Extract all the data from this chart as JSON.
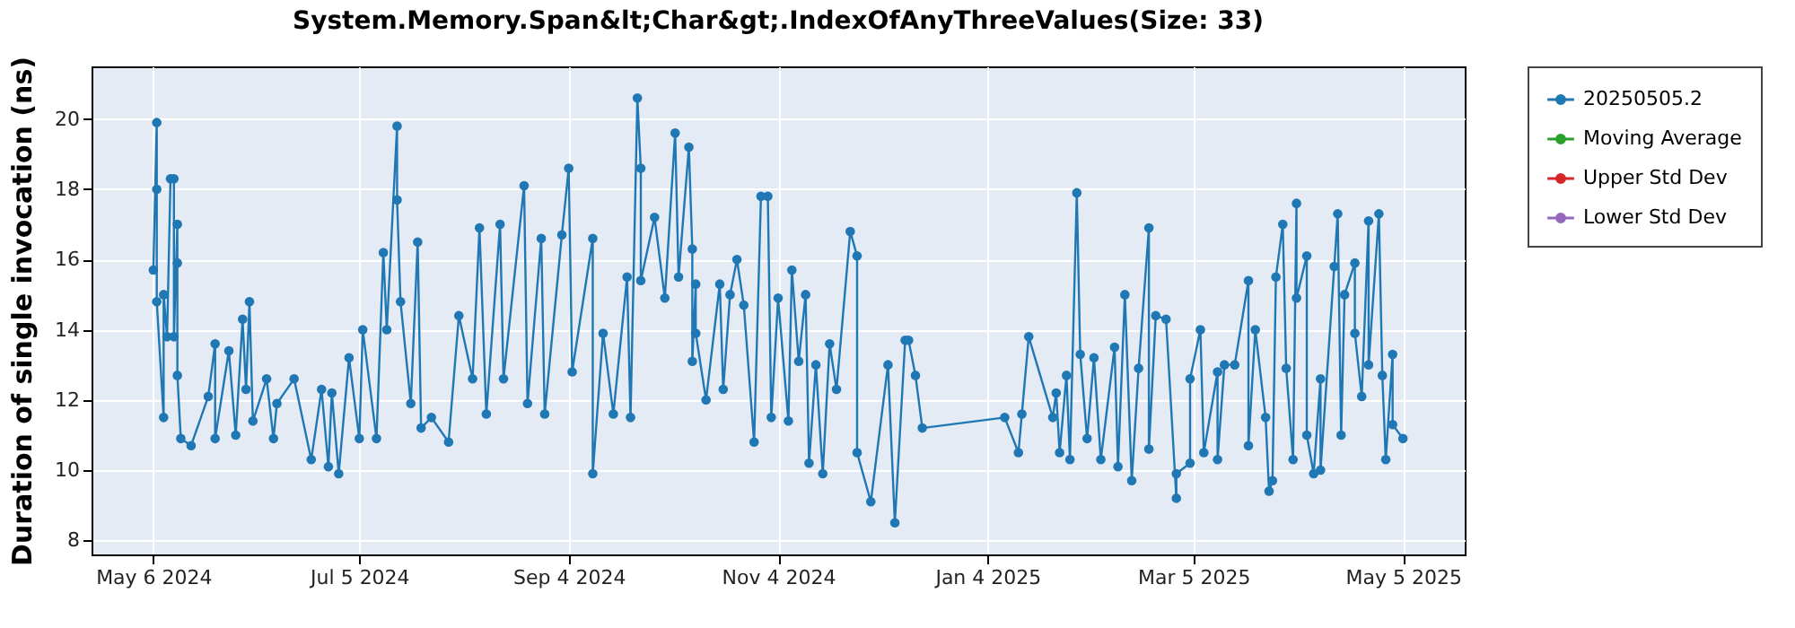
{
  "chart_data": {
    "type": "line",
    "title": "System.Memory.Span&lt;Char&gt;.IndexOfAnyThreeValues(Size: 33)",
    "ylabel": "Duration of single invocation (ns)",
    "x": [
      "2024-05-06",
      "2024-05-07",
      "2024-05-07",
      "2024-05-07",
      "2024-05-09",
      "2024-05-09",
      "2024-05-10",
      "2024-05-11",
      "2024-05-12",
      "2024-05-12",
      "2024-05-13",
      "2024-05-13",
      "2024-05-13",
      "2024-05-14",
      "2024-05-17",
      "2024-05-22",
      "2024-05-24",
      "2024-05-24",
      "2024-05-28",
      "2024-05-30",
      "2024-06-01",
      "2024-06-02",
      "2024-06-03",
      "2024-06-04",
      "2024-06-08",
      "2024-06-10",
      "2024-06-11",
      "2024-06-16",
      "2024-06-21",
      "2024-06-24",
      "2024-06-26",
      "2024-06-27",
      "2024-06-29",
      "2024-07-02",
      "2024-07-05",
      "2024-07-06",
      "2024-07-10",
      "2024-07-12",
      "2024-07-13",
      "2024-07-16",
      "2024-07-16",
      "2024-07-17",
      "2024-07-20",
      "2024-07-22",
      "2024-07-23",
      "2024-07-26",
      "2024-07-31",
      "2024-08-03",
      "2024-08-07",
      "2024-08-09",
      "2024-08-11",
      "2024-08-15",
      "2024-08-16",
      "2024-08-22",
      "2024-08-23",
      "2024-08-27",
      "2024-08-28",
      "2024-09-02",
      "2024-09-04",
      "2024-09-05",
      "2024-09-11",
      "2024-09-11",
      "2024-09-14",
      "2024-09-17",
      "2024-09-21",
      "2024-09-22",
      "2024-09-24",
      "2024-09-25",
      "2024-09-25",
      "2024-09-29",
      "2024-10-02",
      "2024-10-05",
      "2024-10-06",
      "2024-10-09",
      "2024-10-10",
      "2024-10-10",
      "2024-10-11",
      "2024-10-11",
      "2024-10-14",
      "2024-10-18",
      "2024-10-19",
      "2024-10-21",
      "2024-10-23",
      "2024-10-25",
      "2024-10-28",
      "2024-10-30",
      "2024-11-01",
      "2024-11-02",
      "2024-11-04",
      "2024-11-07",
      "2024-11-08",
      "2024-11-10",
      "2024-11-12",
      "2024-11-13",
      "2024-11-15",
      "2024-11-17",
      "2024-11-19",
      "2024-11-21",
      "2024-11-25",
      "2024-11-27",
      "2024-11-27",
      "2024-12-01",
      "2024-12-06",
      "2024-12-08",
      "2024-12-11",
      "2024-12-12",
      "2024-12-14",
      "2024-12-16",
      "2025-01-09",
      "2025-01-13",
      "2025-01-14",
      "2025-01-16",
      "2025-01-23",
      "2025-01-24",
      "2025-01-25",
      "2025-01-27",
      "2025-01-28",
      "2025-01-30",
      "2025-01-31",
      "2025-02-02",
      "2025-02-04",
      "2025-02-06",
      "2025-02-10",
      "2025-02-11",
      "2025-02-13",
      "2025-02-15",
      "2025-02-17",
      "2025-02-20",
      "2025-02-20",
      "2025-02-22",
      "2025-02-25",
      "2025-02-28",
      "2025-02-28",
      "2025-03-04",
      "2025-03-04",
      "2025-03-07",
      "2025-03-08",
      "2025-03-12",
      "2025-03-12",
      "2025-03-14",
      "2025-03-17",
      "2025-03-21",
      "2025-03-21",
      "2025-03-23",
      "2025-03-26",
      "2025-03-27",
      "2025-03-28",
      "2025-03-29",
      "2025-03-31",
      "2025-04-01",
      "2025-04-03",
      "2025-04-04",
      "2025-04-04",
      "2025-04-07",
      "2025-04-07",
      "2025-04-09",
      "2025-04-11",
      "2025-04-11",
      "2025-04-15",
      "2025-04-16",
      "2025-04-17",
      "2025-04-18",
      "2025-04-21",
      "2025-04-21",
      "2025-04-23",
      "2025-04-25",
      "2025-04-25",
      "2025-04-28",
      "2025-04-29",
      "2025-04-30",
      "2025-05-02",
      "2025-05-02",
      "2025-05-05"
    ],
    "series": [
      {
        "name": "20250505.2",
        "color": "#1f77b4",
        "values": [
          15.7,
          19.9,
          18.0,
          14.8,
          11.5,
          15.0,
          13.8,
          18.3,
          18.3,
          13.8,
          17.0,
          15.9,
          12.7,
          10.9,
          10.7,
          12.1,
          13.6,
          10.9,
          13.4,
          11.0,
          14.3,
          12.3,
          14.8,
          11.4,
          12.6,
          10.9,
          11.9,
          12.6,
          10.3,
          12.3,
          10.1,
          12.2,
          9.9,
          13.2,
          10.9,
          14.0,
          10.9,
          16.2,
          14.0,
          19.8,
          17.7,
          14.8,
          11.9,
          16.5,
          11.2,
          11.5,
          10.8,
          14.4,
          12.6,
          16.9,
          11.6,
          17.0,
          12.6,
          18.1,
          11.9,
          16.6,
          11.6,
          16.7,
          18.6,
          12.8,
          16.6,
          9.9,
          13.9,
          11.6,
          15.5,
          11.5,
          20.6,
          18.6,
          15.4,
          17.2,
          14.9,
          19.6,
          15.5,
          19.2,
          16.3,
          13.1,
          15.3,
          13.9,
          12.0,
          15.3,
          12.3,
          15.0,
          16.0,
          14.7,
          10.8,
          17.8,
          17.8,
          11.5,
          14.9,
          11.4,
          15.7,
          13.1,
          15.0,
          10.2,
          13.0,
          9.9,
          13.6,
          12.3,
          16.8,
          16.1,
          10.5,
          9.1,
          13.0,
          8.5,
          13.7,
          13.7,
          12.7,
          11.2,
          11.5,
          10.5,
          11.6,
          13.8,
          11.5,
          12.2,
          10.5,
          12.7,
          10.3,
          17.9,
          13.3,
          10.9,
          13.2,
          10.3,
          13.5,
          10.1,
          15.0,
          9.7,
          12.9,
          16.9,
          10.6,
          14.4,
          14.3,
          9.2,
          9.9,
          10.2,
          12.6,
          14.0,
          10.5,
          12.8,
          10.3,
          13.0,
          13.0,
          15.4,
          10.7,
          14.0,
          11.5,
          9.4,
          9.7,
          15.5,
          17.0,
          12.9,
          10.3,
          17.6,
          14.9,
          16.1,
          11.0,
          9.9,
          12.6,
          10.0,
          15.8,
          17.3,
          11.0,
          15.0,
          15.9,
          13.9,
          12.1,
          17.1,
          13.0,
          17.3,
          12.7,
          10.3,
          13.3,
          11.3,
          10.9
        ]
      },
      {
        "name": "Moving Average",
        "color": "#2ca02c",
        "values": [
          null,
          null,
          null,
          null,
          null,
          null,
          null,
          null,
          null,
          null,
          null,
          null,
          null,
          null,
          null,
          null,
          null,
          null,
          null,
          null,
          null,
          null,
          null,
          null,
          null,
          null,
          null,
          null,
          null,
          null,
          null,
          null,
          null,
          null,
          null,
          null,
          null,
          null,
          null,
          null,
          null,
          null,
          null,
          null,
          null,
          null,
          null,
          null,
          null,
          null,
          null,
          null,
          null,
          null,
          null,
          null,
          null,
          null,
          null,
          null,
          null,
          null,
          null,
          null,
          null,
          null,
          null,
          null,
          null,
          null,
          null,
          null,
          null,
          null,
          null,
          null,
          null,
          null,
          null,
          null,
          null,
          null,
          null,
          null,
          null,
          null,
          null,
          null,
          null,
          null,
          null,
          null,
          null,
          null,
          null,
          null,
          null,
          null,
          null,
          null,
          null,
          null,
          null,
          null,
          null,
          null,
          null,
          null,
          null,
          null,
          null,
          null,
          null,
          null,
          null,
          null,
          null,
          null,
          null,
          null,
          null,
          null,
          null,
          null,
          null,
          null,
          null,
          null,
          null,
          null,
          null,
          null,
          null,
          null,
          null,
          null,
          null,
          null,
          null,
          null,
          null,
          null,
          null,
          null,
          null,
          null,
          null,
          null,
          null,
          null,
          null,
          null,
          null,
          null,
          null,
          null,
          null,
          null,
          null,
          null,
          null,
          null,
          null,
          null,
          null,
          null,
          null,
          null,
          null,
          null,
          null,
          null,
          null
        ]
      },
      {
        "name": "Upper Std Dev",
        "color": "#d62728",
        "values": [
          null,
          null,
          null,
          null,
          null,
          null,
          null,
          null,
          null,
          null,
          null,
          null,
          null,
          null,
          null,
          null,
          null,
          null,
          null,
          null,
          null,
          null,
          null,
          null,
          null,
          null,
          null,
          null,
          null,
          null,
          null,
          null,
          null,
          null,
          null,
          null,
          null,
          null,
          null,
          null,
          null,
          null,
          null,
          null,
          null,
          null,
          null,
          null,
          null,
          null,
          null,
          null,
          null,
          null,
          null,
          null,
          null,
          null,
          null,
          null,
          null,
          null,
          null,
          null,
          null,
          null,
          null,
          null,
          null,
          null,
          null,
          null,
          null,
          null,
          null,
          null,
          null,
          null,
          null,
          null,
          null,
          null,
          null,
          null,
          null,
          null,
          null,
          null,
          null,
          null,
          null,
          null,
          null,
          null,
          null,
          null,
          null,
          null,
          null,
          null,
          null,
          null,
          null,
          null,
          null,
          null,
          null,
          null,
          null,
          null,
          null,
          null,
          null,
          null,
          null,
          null,
          null,
          null,
          null,
          null,
          null,
          null,
          null,
          null,
          null,
          null,
          null,
          null,
          null,
          null,
          null,
          null,
          null,
          null,
          null,
          null,
          null,
          null,
          null,
          null,
          null,
          null,
          null,
          null,
          null,
          null,
          null,
          null,
          null,
          null,
          null,
          null,
          null,
          null,
          null,
          null,
          null,
          null,
          null,
          null,
          null,
          null,
          null,
          null,
          null,
          null,
          null,
          null,
          null,
          null,
          null,
          null,
          null
        ]
      },
      {
        "name": "Lower Std Dev",
        "color": "#9467bd",
        "values": [
          null,
          null,
          null,
          null,
          null,
          null,
          null,
          null,
          null,
          null,
          null,
          null,
          null,
          null,
          null,
          null,
          null,
          null,
          null,
          null,
          null,
          null,
          null,
          null,
          null,
          null,
          null,
          null,
          null,
          null,
          null,
          null,
          null,
          null,
          null,
          null,
          null,
          null,
          null,
          null,
          null,
          null,
          null,
          null,
          null,
          null,
          null,
          null,
          null,
          null,
          null,
          null,
          null,
          null,
          null,
          null,
          null,
          null,
          null,
          null,
          null,
          null,
          null,
          null,
          null,
          null,
          null,
          null,
          null,
          null,
          null,
          null,
          null,
          null,
          null,
          null,
          null,
          null,
          null,
          null,
          null,
          null,
          null,
          null,
          null,
          null,
          null,
          null,
          null,
          null,
          null,
          null,
          null,
          null,
          null,
          null,
          null,
          null,
          null,
          null,
          null,
          null,
          null,
          null,
          null,
          null,
          null,
          null,
          null,
          null,
          null,
          null,
          null,
          null,
          null,
          null,
          null,
          null,
          null,
          null,
          null,
          null,
          null,
          null,
          null,
          null,
          null,
          null,
          null,
          null,
          null,
          null,
          null,
          null,
          null,
          null,
          null,
          null,
          null,
          null,
          null,
          null,
          null,
          null,
          null,
          null,
          null,
          null,
          null,
          null,
          null,
          null,
          null,
          null,
          null,
          null,
          null,
          null,
          null,
          null,
          null,
          null,
          null,
          null,
          null,
          null,
          null,
          null,
          null,
          null,
          null,
          null,
          null
        ]
      }
    ],
    "xlim": [
      "2024-04-18",
      "2025-05-23"
    ],
    "xticks": [
      {
        "value": "2024-05-06",
        "label": "May 6 2024"
      },
      {
        "value": "2024-07-05",
        "label": "Jul 5 2024"
      },
      {
        "value": "2024-09-04",
        "label": "Sep 4 2024"
      },
      {
        "value": "2024-11-04",
        "label": "Nov 4 2024"
      },
      {
        "value": "2025-01-04",
        "label": "Jan 4 2025"
      },
      {
        "value": "2025-03-05",
        "label": "Mar 5 2025"
      },
      {
        "value": "2025-05-05",
        "label": "May 5 2025"
      }
    ],
    "ylim": [
      7.6,
      21.5
    ],
    "yticks": [
      8,
      10,
      12,
      14,
      16,
      18,
      20
    ],
    "grid": true,
    "legend": "right",
    "marker": "circle",
    "line_style": "solid"
  }
}
